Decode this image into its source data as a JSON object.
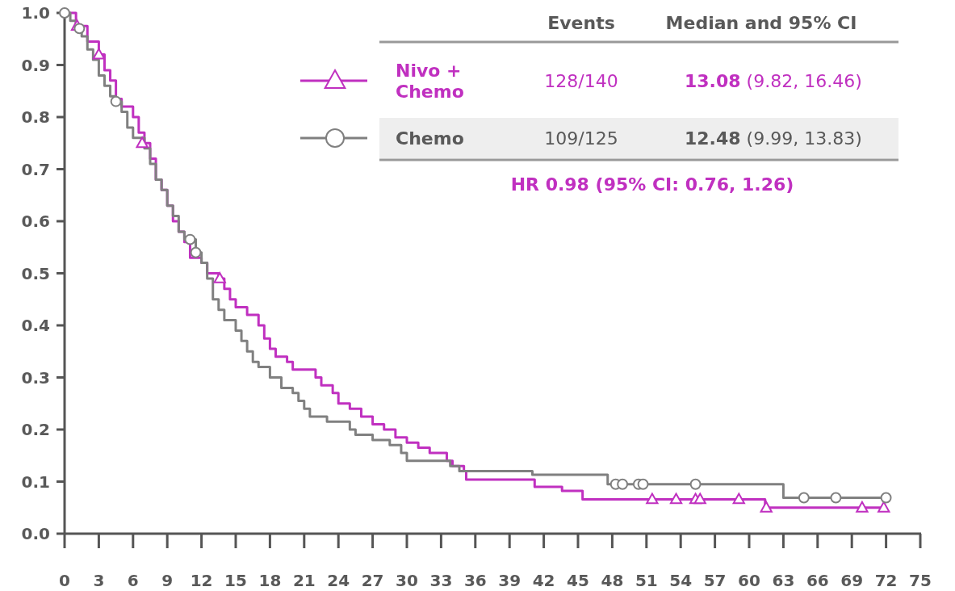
{
  "chart_data": {
    "type": "step",
    "xlim": [
      0,
      75
    ],
    "xticks": [
      0,
      3,
      6,
      9,
      12,
      15,
      18,
      21,
      24,
      27,
      30,
      33,
      36,
      39,
      42,
      45,
      48,
      51,
      54,
      57,
      60,
      63,
      66,
      69,
      72,
      75
    ],
    "ylim": [
      0,
      1
    ],
    "yticks": [
      "0.0",
      0.1,
      0.2,
      0.3,
      0.4,
      0.5,
      0.6,
      0.7,
      0.8,
      0.9,
      "1.0"
    ],
    "grid": false,
    "legend": "top",
    "annotations": [
      "Events",
      "Median and 95% CI",
      "128/140",
      "13.08",
      "(9.82, 16.46)",
      "109/125",
      "12.48",
      "(9.99, 13.83)",
      "HR 0.98 (95% CI: 0.76, 1.26)"
    ],
    "series": [
      {
        "name": "Nivo + Chemo",
        "color": "#c030c0",
        "x": [
          0,
          1,
          2,
          3,
          3.5,
          4,
          4.5,
          5,
          6,
          6.5,
          7,
          7.5,
          8,
          8.5,
          9,
          9.5,
          10,
          10.5,
          11,
          12,
          12.5,
          13.5,
          14,
          14.5,
          15,
          16,
          17,
          17.5,
          18,
          18.5,
          19.5,
          20,
          22,
          22.5,
          23.5,
          24,
          25,
          26,
          27,
          28,
          29,
          30,
          31,
          32,
          33.5,
          34,
          35,
          35.2,
          41.2,
          43.6,
          45.4,
          61.4,
          72
        ],
        "values": [
          1.0,
          0.975,
          0.945,
          0.92,
          0.89,
          0.87,
          0.835,
          0.82,
          0.8,
          0.77,
          0.75,
          0.72,
          0.68,
          0.66,
          0.63,
          0.6,
          0.58,
          0.56,
          0.53,
          0.52,
          0.5,
          0.49,
          0.47,
          0.45,
          0.435,
          0.42,
          0.4,
          0.375,
          0.355,
          0.34,
          0.33,
          0.315,
          0.3,
          0.285,
          0.27,
          0.25,
          0.24,
          0.225,
          0.21,
          0.2,
          0.185,
          0.175,
          0.165,
          0.155,
          0.14,
          0.13,
          0.12,
          0.104,
          0.09,
          0.082,
          0.066,
          0.05,
          0.05
        ]
      },
      {
        "name": "Chemo",
        "color": "#808080",
        "x": [
          0,
          0.5,
          1,
          1.5,
          2,
          2.5,
          3,
          3.5,
          4,
          4.5,
          5,
          5.5,
          6,
          7,
          7.5,
          8,
          8.5,
          9,
          9.5,
          10,
          10.5,
          11.5,
          12,
          12.5,
          13,
          13.5,
          14,
          15,
          15.5,
          16,
          16.5,
          17,
          18,
          19,
          20,
          20.5,
          21,
          21.5,
          23,
          25,
          25.5,
          27,
          28.5,
          29.5,
          30,
          33.8,
          34.6,
          41,
          47.6,
          63,
          72
        ],
        "values": [
          1.0,
          0.985,
          0.97,
          0.955,
          0.93,
          0.91,
          0.88,
          0.86,
          0.84,
          0.83,
          0.81,
          0.78,
          0.76,
          0.74,
          0.71,
          0.68,
          0.66,
          0.63,
          0.61,
          0.58,
          0.565,
          0.54,
          0.52,
          0.49,
          0.45,
          0.43,
          0.41,
          0.39,
          0.37,
          0.35,
          0.33,
          0.32,
          0.3,
          0.28,
          0.27,
          0.255,
          0.24,
          0.225,
          0.215,
          0.2,
          0.19,
          0.18,
          0.17,
          0.155,
          0.14,
          0.13,
          0.12,
          0.113,
          0.095,
          0.069,
          0.069
        ]
      },
      {
        "type": "scatter",
        "color": "#c030c0",
        "marker": "triangle",
        "x": [
          1.1,
          3,
          6.8,
          13.6,
          51.5,
          53.6,
          55.3,
          55.7,
          59.1,
          61.5,
          69.9,
          71.8
        ],
        "values": [
          0.975,
          0.92,
          0.75,
          0.49,
          0.066,
          0.066,
          0.066,
          0.066,
          0.066,
          0.05,
          0.05,
          0.05
        ]
      },
      {
        "type": "scatter",
        "color": "#808080",
        "marker": "circle",
        "x": [
          0,
          1.3,
          4.5,
          11,
          11.5,
          48.3,
          48.9,
          50.3,
          50.7,
          55.3,
          64.8,
          67.6,
          72
        ],
        "values": [
          1.0,
          0.97,
          0.83,
          0.565,
          0.54,
          0.095,
          0.095,
          0.095,
          0.095,
          0.095,
          0.069,
          0.069,
          0.069
        ]
      }
    ]
  }
}
